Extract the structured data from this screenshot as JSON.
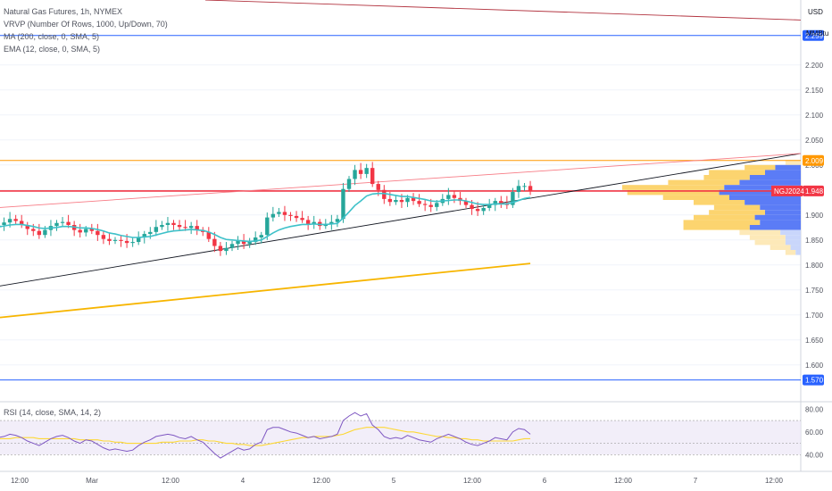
{
  "legend": {
    "symbol": "Natural Gas Futures, 1h, NYMEX",
    "vrvp": "VRVP (Number Of Rows, 1000, Up/Down, 70)",
    "ma": "MA (200, close, 0, SMA, 5)",
    "ema": "EMA (12, close, 0, SMA, 5)",
    "rsi": "RSI (14, close, SMA, 14, 2)"
  },
  "axis": {
    "currency": "USD",
    "unit": "MMBtu"
  },
  "colors": {
    "up": "#26a69a",
    "down": "#f23645",
    "ema": "#3ec1c9",
    "ma": "#f7b500",
    "blue_line": "#2962ff",
    "orange_line": "#ff9800",
    "red_line": "#f23645",
    "trend_line": "#131722",
    "rsi": "#7e57c2",
    "rsi_ma": "#fdd835",
    "vp_up": "#fcd46f",
    "vp_down": "#5b7cf6"
  },
  "chart_data": {
    "type": "candlestick",
    "y_range": [
      1.53,
      2.33
    ],
    "y_ticks": [
      1.6,
      1.65,
      1.7,
      1.75,
      1.8,
      1.85,
      1.9,
      1.95,
      2.0,
      2.05,
      2.1,
      2.15,
      2.2
    ],
    "y_tick_labels": [
      "1.600",
      "1.650",
      "1.700",
      "1.750",
      "1.800",
      "1.850",
      "1.900",
      "1.950",
      "2.000",
      "2.050",
      "2.100",
      "2.150",
      "2.200"
    ],
    "x_tick_labels": [
      "12:00",
      "Mar",
      "12:00",
      "4",
      "12:00",
      "5",
      "12:00",
      "6",
      "12:00",
      "7",
      "12:00"
    ],
    "price_tags": [
      {
        "label": "2.259",
        "value": 2.259,
        "color": "#2962ff"
      },
      {
        "label": "2.009",
        "value": 2.009,
        "color": "#ff9800"
      },
      {
        "label": "1.948",
        "value": 1.948,
        "color": "#f23645"
      },
      {
        "label": "1.570",
        "value": 1.57,
        "color": "#2962ff"
      }
    ],
    "contract_label": "NGJ2024",
    "horizontal_lines": [
      {
        "value": 2.259,
        "color": "#2962ff"
      },
      {
        "value": 2.009,
        "color": "#ff9800"
      },
      {
        "value": 1.948,
        "color": "#f23645"
      },
      {
        "value": 1.57,
        "color": "#2962ff"
      }
    ],
    "closes": [
      1.88,
      1.885,
      1.892,
      1.888,
      1.88,
      1.872,
      1.868,
      1.86,
      1.87,
      1.878,
      1.884,
      1.886,
      1.88,
      1.87,
      1.865,
      1.872,
      1.868,
      1.86,
      1.852,
      1.848,
      1.85,
      1.848,
      1.844,
      1.846,
      1.855,
      1.862,
      1.866,
      1.876,
      1.88,
      1.884,
      1.88,
      1.876,
      1.874,
      1.878,
      1.87,
      1.866,
      1.852,
      1.838,
      1.828,
      1.834,
      1.842,
      1.848,
      1.842,
      1.846,
      1.855,
      1.86,
      1.895,
      1.902,
      1.906,
      1.9,
      1.898,
      1.894,
      1.89,
      1.882,
      1.886,
      1.878,
      1.882,
      1.886,
      1.892,
      1.952,
      1.972,
      1.99,
      1.982,
      1.994,
      1.962,
      1.95,
      1.932,
      1.926,
      1.93,
      1.926,
      1.934,
      1.928,
      1.922,
      1.92,
      1.916,
      1.924,
      1.932,
      1.94,
      1.934,
      1.928,
      1.92,
      1.912,
      1.908,
      1.914,
      1.92,
      1.928,
      1.924,
      1.92,
      1.946,
      1.958,
      1.958,
      1.948
    ],
    "ema12": [
      1.876,
      1.878,
      1.88,
      1.881,
      1.881,
      1.879,
      1.877,
      1.874,
      1.873,
      1.874,
      1.875,
      1.877,
      1.877,
      1.876,
      1.874,
      1.874,
      1.873,
      1.871,
      1.868,
      1.864,
      1.862,
      1.859,
      1.857,
      1.855,
      1.855,
      1.856,
      1.857,
      1.86,
      1.863,
      1.866,
      1.868,
      1.869,
      1.87,
      1.871,
      1.87,
      1.869,
      1.866,
      1.861,
      1.855,
      1.851,
      1.85,
      1.849,
      1.848,
      1.847,
      1.848,
      1.85,
      1.857,
      1.864,
      1.87,
      1.874,
      1.877,
      1.879,
      1.881,
      1.881,
      1.882,
      1.881,
      1.881,
      1.882,
      1.883,
      1.894,
      1.906,
      1.919,
      1.928,
      1.938,
      1.942,
      1.943,
      1.943,
      1.941,
      1.939,
      1.937,
      1.937,
      1.935,
      1.933,
      1.931,
      1.928,
      1.927,
      1.928,
      1.929,
      1.93,
      1.93,
      1.928,
      1.925,
      1.922,
      1.921,
      1.921,
      1.922,
      1.922,
      1.922,
      1.925,
      1.929,
      1.933,
      1.935
    ],
    "ma200_start": 1.695,
    "ma200_end": 1.803,
    "trend_support": {
      "x_start": -0.5,
      "y_start": 1.758,
      "x_end": 1.0,
      "y_end": 2.023
    },
    "trend_upper": {
      "x_start": -0.5,
      "y_start": 1.915,
      "x_end": 1.0,
      "y_end": 2.023
    },
    "trend_top": {
      "x_start": -0.5,
      "y_start": 2.33,
      "x_end": 1.0,
      "y_end": 2.29
    },
    "volume_profile_bins": [
      {
        "price": 2.005,
        "up": 30,
        "down": 0
      },
      {
        "price": 1.995,
        "up": 60,
        "down": 50
      },
      {
        "price": 1.985,
        "up": 110,
        "down": 70
      },
      {
        "price": 1.975,
        "up": 90,
        "down": 100
      },
      {
        "price": 1.965,
        "up": 140,
        "down": 120
      },
      {
        "price": 1.955,
        "up": 200,
        "down": 150
      },
      {
        "price": 1.945,
        "up": 180,
        "down": 160
      },
      {
        "price": 1.935,
        "up": 130,
        "down": 140
      },
      {
        "price": 1.925,
        "up": 100,
        "down": 110
      },
      {
        "price": 1.915,
        "up": 90,
        "down": 80
      },
      {
        "price": 1.905,
        "up": 110,
        "down": 70
      },
      {
        "price": 1.895,
        "up": 120,
        "down": 90
      },
      {
        "price": 1.885,
        "up": 150,
        "down": 80
      },
      {
        "price": 1.875,
        "up": 130,
        "down": 100
      },
      {
        "price": 1.865,
        "up": 80,
        "down": 40
      },
      {
        "price": 1.855,
        "up": 70,
        "down": 30
      },
      {
        "price": 1.845,
        "up": 60,
        "down": 30
      },
      {
        "price": 1.835,
        "up": 40,
        "down": 20
      },
      {
        "price": 1.825,
        "up": 20,
        "down": 10
      }
    ],
    "rsi": {
      "y_range": [
        30,
        85
      ],
      "ticks": [
        40,
        60,
        80
      ],
      "tick_labels": [
        "40.00",
        "60.00",
        "80.00"
      ],
      "band": [
        40,
        70
      ],
      "values": [
        55,
        56,
        58,
        57,
        55,
        52,
        50,
        48,
        51,
        54,
        56,
        57,
        55,
        52,
        50,
        53,
        52,
        49,
        46,
        44,
        45,
        44,
        43,
        44,
        48,
        51,
        53,
        56,
        57,
        58,
        57,
        55,
        54,
        56,
        53,
        51,
        46,
        41,
        37,
        40,
        43,
        46,
        44,
        45,
        49,
        51,
        62,
        64,
        64,
        62,
        60,
        59,
        57,
        55,
        56,
        54,
        55,
        56,
        58,
        70,
        74,
        77,
        74,
        76,
        66,
        62,
        56,
        54,
        55,
        54,
        57,
        55,
        53,
        52,
        51,
        54,
        56,
        58,
        56,
        54,
        51,
        49,
        48,
        50,
        52,
        55,
        54,
        53,
        60,
        63,
        62,
        58
      ],
      "ma": [
        54,
        54,
        54,
        55,
        55,
        55,
        55,
        54,
        54,
        54,
        54,
        54,
        54,
        54,
        53,
        53,
        53,
        53,
        52,
        52,
        51,
        51,
        50,
        50,
        50,
        50,
        50,
        50,
        51,
        51,
        51,
        52,
        52,
        52,
        53,
        53,
        52,
        52,
        51,
        50,
        50,
        49,
        49,
        48,
        48,
        48,
        49,
        50,
        51,
        52,
        53,
        54,
        55,
        55,
        56,
        56,
        56,
        56,
        57,
        58,
        60,
        62,
        63,
        64,
        64,
        64,
        64,
        63,
        62,
        61,
        60,
        60,
        59,
        58,
        57,
        56,
        56,
        55,
        55,
        54,
        54,
        53,
        53,
        52,
        52,
        52,
        52,
        52,
        52,
        53,
        54,
        54
      ]
    }
  }
}
